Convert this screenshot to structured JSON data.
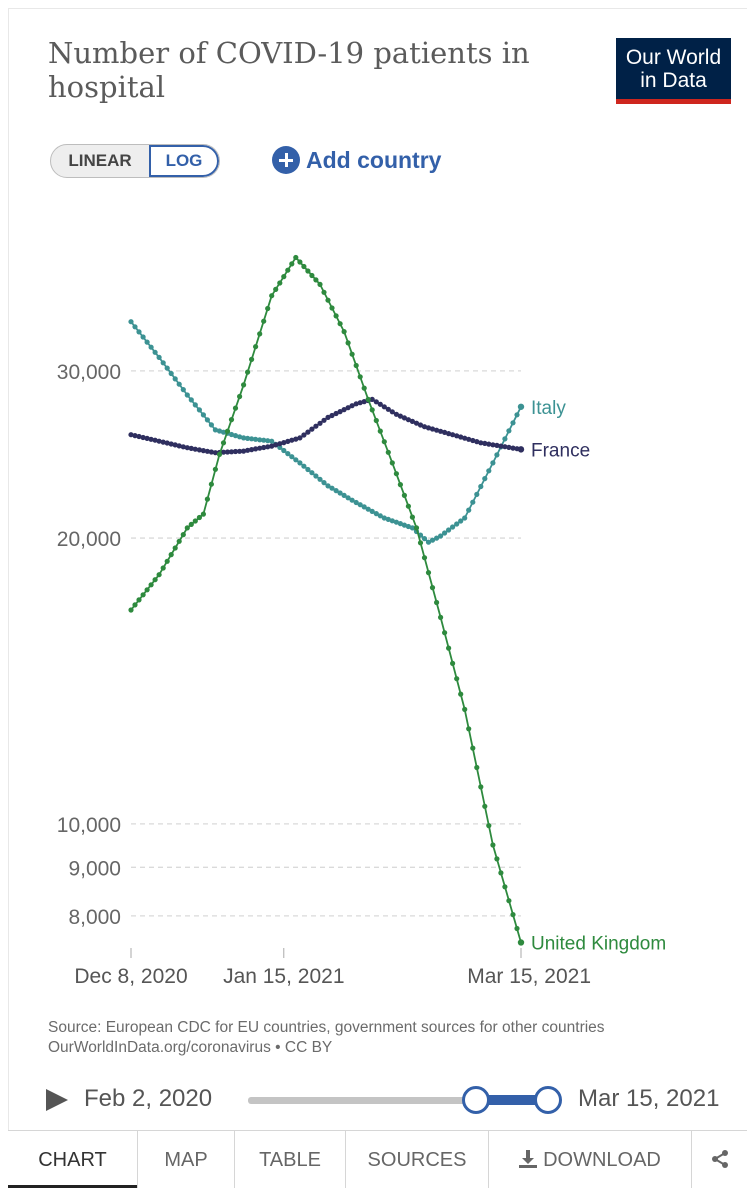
{
  "header": {
    "title": "Number of COVID-19 patients in hospital",
    "logo_line1": "Our World",
    "logo_line2": "in Data"
  },
  "controls": {
    "scale_options": [
      "LINEAR",
      "LOG"
    ],
    "selected_scale": "LOG",
    "add_country_label": "Add country"
  },
  "footer": {
    "source_line1": "Source: European CDC for EU countries, government sources for other countries",
    "source_line2": "OurWorldInData.org/coronavirus • CC BY"
  },
  "timeline": {
    "start_label": "Feb 2, 2020",
    "end_label": "Mar 15, 2021"
  },
  "tabs": [
    "CHART",
    "MAP",
    "TABLE",
    "SOURCES",
    "DOWNLOAD"
  ],
  "active_tab": "CHART",
  "colors": {
    "italy": "#3c9293",
    "france": "#2f2f5f",
    "united_kingdom": "#2e8a3e",
    "accent": "#3360a9",
    "logo_bg": "#002147",
    "logo_bar": "#ce261e"
  },
  "chart_data": {
    "type": "line",
    "title": "Number of COVID-19 patients in hospital",
    "y_scale": "log",
    "ylim": [
      7400,
      44000
    ],
    "xlim": [
      "2020-12-08",
      "2021-03-15"
    ],
    "y_ticks": [
      8000,
      9000,
      10000,
      20000,
      30000
    ],
    "y_tick_labels": [
      "8,000",
      "9,000",
      "10,000",
      "20,000",
      "30,000"
    ],
    "x_ticks": [
      "2020-12-08",
      "2021-01-15",
      "2021-03-15"
    ],
    "x_tick_labels": [
      "Dec 8, 2020",
      "Jan 15, 2021",
      "Mar 15, 2021"
    ],
    "grid": "horizontal dashed",
    "legend": "line-end labels",
    "series": [
      {
        "name": "Italy",
        "color": "#3c9293",
        "points": [
          [
            "2020-12-08",
            33800
          ],
          [
            "2020-12-15",
            31000
          ],
          [
            "2020-12-22",
            28300
          ],
          [
            "2020-12-29",
            26000
          ],
          [
            "2021-01-05",
            25500
          ],
          [
            "2021-01-12",
            25300
          ],
          [
            "2021-01-19",
            24000
          ],
          [
            "2021-01-26",
            22700
          ],
          [
            "2021-02-02",
            21800
          ],
          [
            "2021-02-09",
            21000
          ],
          [
            "2021-02-16",
            20500
          ],
          [
            "2021-02-20",
            19800
          ],
          [
            "2021-02-23",
            20100
          ],
          [
            "2021-03-01",
            21000
          ],
          [
            "2021-03-08",
            24000
          ],
          [
            "2021-03-15",
            27500
          ]
        ]
      },
      {
        "name": "France",
        "color": "#2f2f5f",
        "points": [
          [
            "2020-12-08",
            25700
          ],
          [
            "2020-12-15",
            25300
          ],
          [
            "2020-12-22",
            24900
          ],
          [
            "2020-12-29",
            24600
          ],
          [
            "2021-01-05",
            24700
          ],
          [
            "2021-01-12",
            25000
          ],
          [
            "2021-01-19",
            25500
          ],
          [
            "2021-01-26",
            26800
          ],
          [
            "2021-02-02",
            27700
          ],
          [
            "2021-02-06",
            28000
          ],
          [
            "2021-02-12",
            27000
          ],
          [
            "2021-02-19",
            26200
          ],
          [
            "2021-02-26",
            25700
          ],
          [
            "2021-03-05",
            25200
          ],
          [
            "2021-03-15",
            24800
          ]
        ]
      },
      {
        "name": "United Kingdom",
        "color": "#2e8a3e",
        "points": [
          [
            "2020-12-08",
            16800
          ],
          [
            "2020-12-15",
            18300
          ],
          [
            "2020-12-22",
            20500
          ],
          [
            "2020-12-26",
            21200
          ],
          [
            "2020-12-30",
            24500
          ],
          [
            "2021-01-05",
            29000
          ],
          [
            "2021-01-12",
            36000
          ],
          [
            "2021-01-18",
            39500
          ],
          [
            "2021-01-24",
            37000
          ],
          [
            "2021-01-30",
            33000
          ],
          [
            "2021-02-05",
            28000
          ],
          [
            "2021-02-11",
            24000
          ],
          [
            "2021-02-17",
            20500
          ],
          [
            "2021-02-23",
            16500
          ],
          [
            "2021-03-01",
            13200
          ],
          [
            "2021-03-08",
            9500
          ],
          [
            "2021-03-15",
            7500
          ]
        ]
      }
    ]
  }
}
